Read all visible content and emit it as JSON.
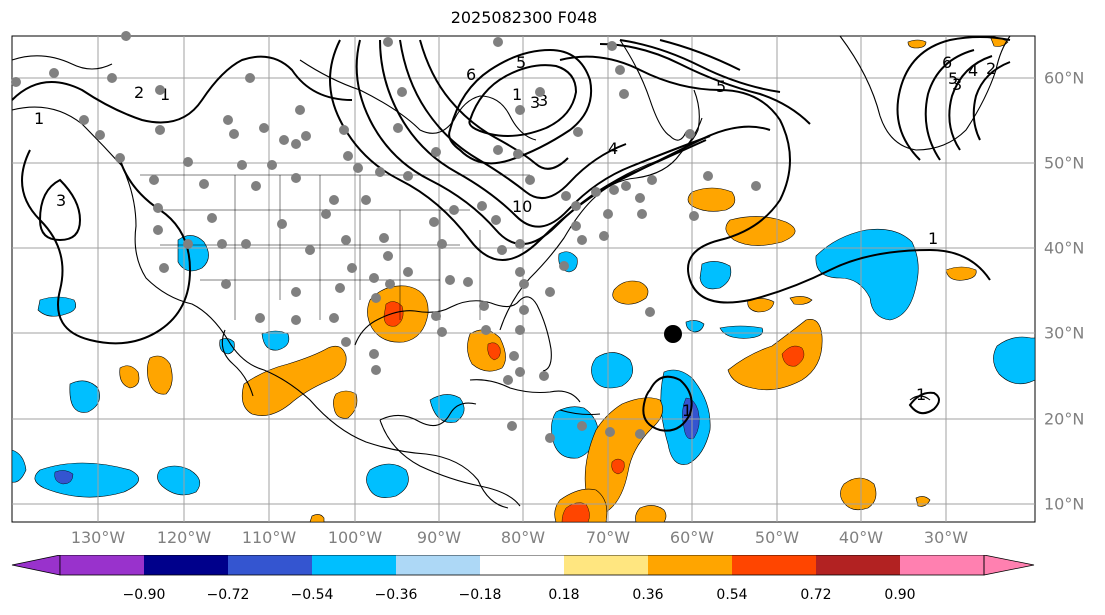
{
  "title": "2025082300 F048",
  "map": {
    "lon_labels": [
      "130°W",
      "120°W",
      "110°W",
      "100°W",
      "90°W",
      "80°W",
      "70°W",
      "60°W",
      "50°W",
      "40°W",
      "30°W"
    ],
    "lat_labels": [
      "60°N",
      "50°N",
      "40°N",
      "30°N",
      "20°N",
      "10°N"
    ],
    "contour_labels": [
      "1",
      "2",
      "3",
      "1",
      "3",
      "6",
      "5",
      "3",
      "4",
      "5",
      "10",
      "1",
      "5",
      "6",
      "3",
      "4",
      "2",
      "1",
      "1",
      "1"
    ],
    "marker": "storm-center-dot",
    "colors": {
      "land_outline": "#000000",
      "grid": "#a0a0a0",
      "station_dot": "#808080",
      "contour": "#000000"
    }
  },
  "colorbar": {
    "ticks": [
      "−0.90",
      "−0.72",
      "−0.54",
      "−0.36",
      "−0.18",
      "0.18",
      "0.36",
      "0.54",
      "0.72",
      "0.90"
    ],
    "colors": [
      "#9932cc",
      "#00008b",
      "#3455d0",
      "#00bfff",
      "#add8f6",
      "#ffffff",
      "#ffe680",
      "#ffa500",
      "#ff4500",
      "#b22222",
      "#ff80b0"
    ]
  }
}
